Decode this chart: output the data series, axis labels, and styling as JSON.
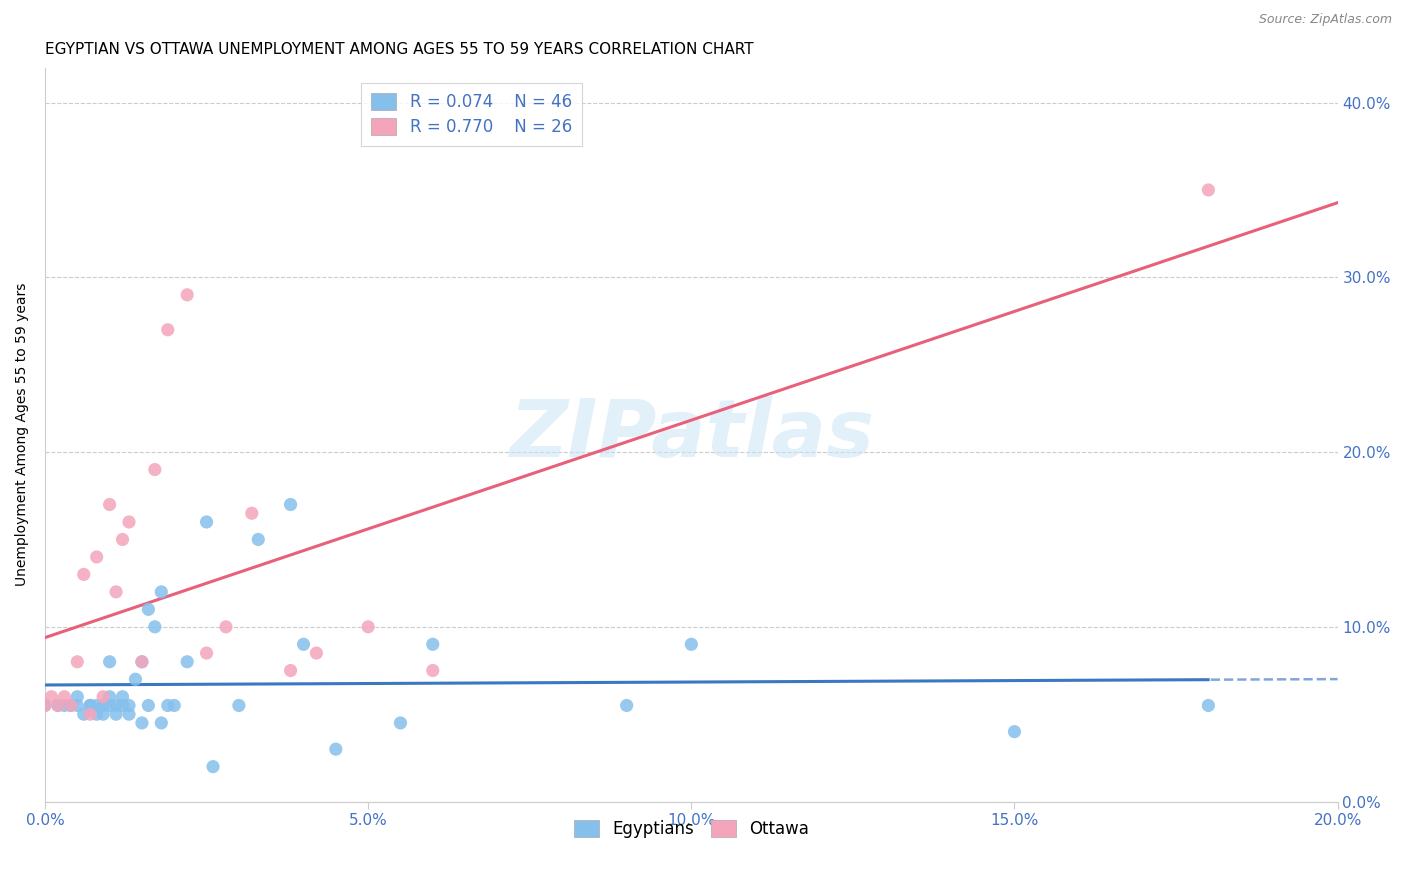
{
  "title": "EGYPTIAN VS OTTAWA UNEMPLOYMENT AMONG AGES 55 TO 59 YEARS CORRELATION CHART",
  "source": "Source: ZipAtlas.com",
  "ylabel": "Unemployment Among Ages 55 to 59 years",
  "xlim": [
    0.0,
    0.2
  ],
  "ylim": [
    0.0,
    0.42
  ],
  "xticks": [
    0.0,
    0.05,
    0.1,
    0.15,
    0.2
  ],
  "yticks": [
    0.0,
    0.1,
    0.2,
    0.3,
    0.4
  ],
  "egyptians_x": [
    0.0,
    0.002,
    0.003,
    0.004,
    0.005,
    0.005,
    0.006,
    0.007,
    0.007,
    0.008,
    0.008,
    0.009,
    0.009,
    0.01,
    0.01,
    0.01,
    0.011,
    0.011,
    0.012,
    0.012,
    0.013,
    0.013,
    0.014,
    0.015,
    0.015,
    0.016,
    0.016,
    0.017,
    0.018,
    0.018,
    0.019,
    0.02,
    0.022,
    0.025,
    0.026,
    0.03,
    0.033,
    0.038,
    0.04,
    0.045,
    0.055,
    0.06,
    0.09,
    0.1,
    0.15,
    0.18
  ],
  "egyptians_y": [
    0.055,
    0.055,
    0.055,
    0.055,
    0.055,
    0.06,
    0.05,
    0.055,
    0.055,
    0.05,
    0.055,
    0.05,
    0.055,
    0.055,
    0.06,
    0.08,
    0.05,
    0.055,
    0.055,
    0.06,
    0.05,
    0.055,
    0.07,
    0.045,
    0.08,
    0.055,
    0.11,
    0.1,
    0.045,
    0.12,
    0.055,
    0.055,
    0.08,
    0.16,
    0.02,
    0.055,
    0.15,
    0.17,
    0.09,
    0.03,
    0.045,
    0.09,
    0.055,
    0.09,
    0.04,
    0.055
  ],
  "ottawa_x": [
    0.0,
    0.001,
    0.002,
    0.003,
    0.004,
    0.005,
    0.006,
    0.007,
    0.008,
    0.009,
    0.01,
    0.011,
    0.012,
    0.013,
    0.015,
    0.017,
    0.019,
    0.022,
    0.025,
    0.028,
    0.032,
    0.038,
    0.042,
    0.05,
    0.06,
    0.18
  ],
  "ottawa_y": [
    0.055,
    0.06,
    0.055,
    0.06,
    0.055,
    0.08,
    0.13,
    0.05,
    0.14,
    0.06,
    0.17,
    0.12,
    0.15,
    0.16,
    0.08,
    0.19,
    0.27,
    0.29,
    0.085,
    0.1,
    0.165,
    0.075,
    0.085,
    0.1,
    0.075,
    0.35
  ],
  "egyptians_color": "#85BFEC",
  "ottawa_color": "#F4A5BB",
  "egyptians_line_color": "#3B78C3",
  "ottawa_line_color": "#E8607A",
  "R_egyptians": 0.074,
  "N_egyptians": 46,
  "R_ottawa": 0.77,
  "N_ottawa": 26,
  "watermark": "ZIPatlas",
  "background_color": "#ffffff",
  "title_fontsize": 11,
  "axis_label_fontsize": 10,
  "tick_fontsize": 11,
  "legend_fontsize": 12
}
